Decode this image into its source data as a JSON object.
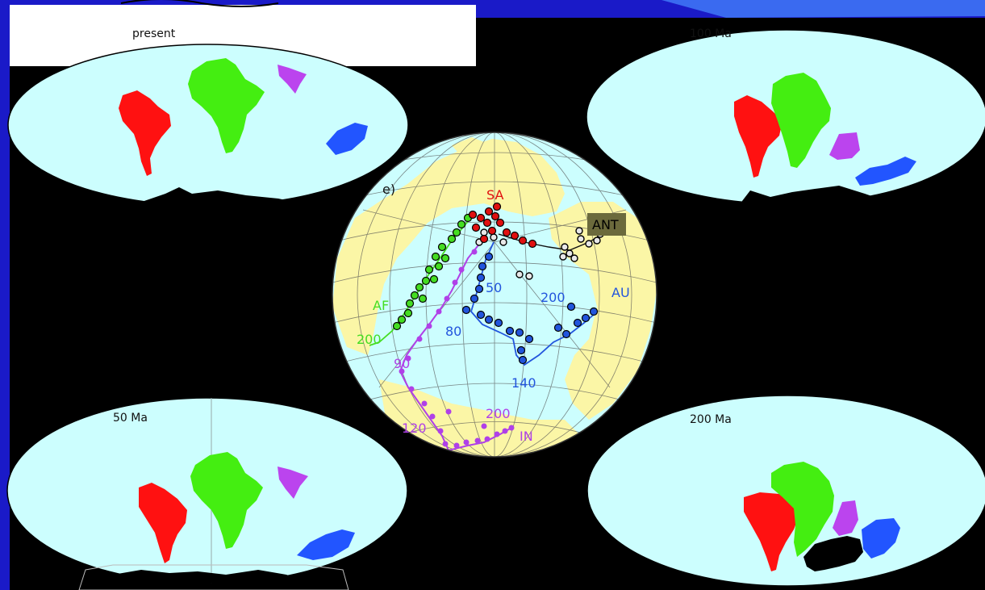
{
  "maps": {
    "top_left": {
      "label": "present"
    },
    "top_right": {
      "label": "100 Ma"
    },
    "bottom_left": {
      "label": "50 Ma"
    },
    "bottom_right": {
      "label": "200 Ma"
    }
  },
  "globe": {
    "panel_label": "e)",
    "tracks": {
      "SA": {
        "label": "SA",
        "color": "#e01010"
      },
      "AF": {
        "label": "AF",
        "color": "#44dd22",
        "age_label": "200"
      },
      "ANT": {
        "label": "ANT",
        "color": "#222222"
      },
      "AU": {
        "label": "AU",
        "color": "#2255dd",
        "age_labels": [
          "50",
          "80",
          "200",
          "140"
        ]
      },
      "IN": {
        "label": "IN",
        "color": "#b040e8",
        "age_labels": [
          "90",
          "120",
          "200"
        ]
      }
    }
  },
  "colors": {
    "ocean": "#ccfefe",
    "south_america": "#ff1111",
    "africa": "#44ee11",
    "madagascar_india": "#bb44ee",
    "australia": "#2255ff",
    "antarctica": "#000000",
    "globe_land": "#fbf6a6",
    "frame_blue": "#1a1ac8"
  }
}
